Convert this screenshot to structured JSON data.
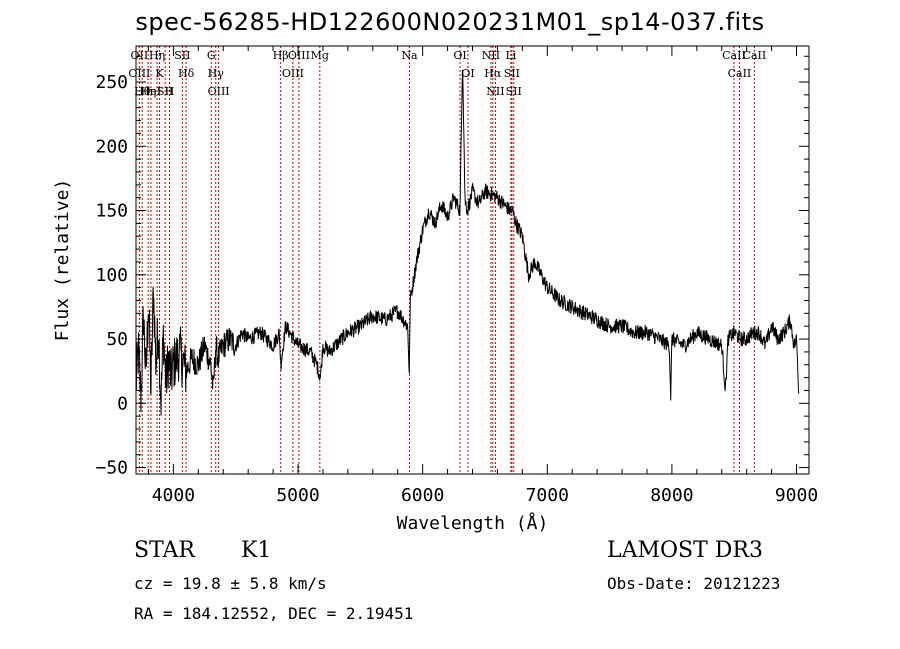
{
  "chart_data": {
    "type": "line",
    "title": "spec-56285-HD122600N020231M01_sp14-037.fits",
    "xlabel": "Wavelength (Å)",
    "ylabel": "Flux (relative)",
    "xlim": [
      3700,
      9100
    ],
    "ylim": [
      -55,
      278
    ],
    "xticks": [
      4000,
      5000,
      6000,
      7000,
      8000,
      9000
    ],
    "yticks": [
      -50,
      0,
      50,
      100,
      150,
      200,
      250
    ],
    "xtick_labels": [
      "4000",
      "5000",
      "6000",
      "7000",
      "8000",
      "9000"
    ],
    "ytick_labels": [
      "−50",
      "0",
      "50",
      "100",
      "150",
      "200",
      "250"
    ],
    "series": [
      {
        "x": [
          3700,
          3720,
          3740,
          3760,
          3780,
          3800,
          3820,
          3840,
          3860,
          3880,
          3900,
          3920,
          3940,
          3960,
          3980,
          4000,
          4050,
          4100,
          4150,
          4200,
          4250,
          4300,
          4320,
          4340,
          4360,
          4400,
          4450,
          4500,
          4550,
          4600,
          4700,
          4800,
          4850,
          4862,
          4900,
          5000,
          5100,
          5150,
          5180,
          5200,
          5250,
          5300,
          5400,
          5500,
          5600,
          5700,
          5800,
          5880,
          5893,
          5900,
          5950,
          6000,
          6050,
          6100,
          6150,
          6200,
          6250,
          6300,
          6320,
          6340,
          6360,
          6400,
          6450,
          6500,
          6563,
          6600,
          6650,
          6700,
          6720,
          6750,
          6800,
          6850,
          6900,
          6950,
          7000,
          7100,
          7200,
          7300,
          7400,
          7500,
          7600,
          7700,
          7800,
          7900,
          7980,
          7990,
          8000,
          8100,
          8200,
          8300,
          8400,
          8430,
          8450,
          8500,
          8550,
          8600,
          8650,
          8700,
          8750,
          8800,
          8850,
          8900,
          8950,
          8980,
          9000,
          9020
        ],
        "y": [
          15,
          40,
          5,
          70,
          20,
          80,
          10,
          90,
          30,
          60,
          0,
          55,
          15,
          35,
          20,
          30,
          40,
          25,
          35,
          30,
          45,
          30,
          10,
          45,
          35,
          45,
          50,
          45,
          55,
          50,
          55,
          45,
          55,
          30,
          60,
          45,
          40,
          30,
          20,
          45,
          40,
          45,
          55,
          60,
          68,
          65,
          72,
          60,
          22,
          80,
          110,
          135,
          150,
          140,
          155,
          145,
          160,
          150,
          270,
          158,
          150,
          165,
          155,
          165,
          162,
          160,
          155,
          150,
          150,
          140,
          130,
          100,
          110,
          100,
          90,
          80,
          75,
          70,
          65,
          60,
          60,
          55,
          55,
          50,
          45,
          5,
          50,
          45,
          55,
          50,
          45,
          10,
          50,
          55,
          50,
          50,
          55,
          55,
          45,
          60,
          50,
          55,
          65,
          45,
          50,
          5
        ]
      }
    ],
    "lines": [
      {
        "x": 3727,
        "labels": [
          "OII",
          "OIII"
        ]
      },
      {
        "x": 3750,
        "labels": [
          "Hθ"
        ]
      },
      {
        "x": 3797,
        "labels": [
          "Hη"
        ]
      },
      {
        "x": 3820,
        "labels": [
          "HeI"
        ]
      },
      {
        "x": 3869,
        "labels": [
          "Hη"
        ]
      },
      {
        "x": 3889,
        "labels": [
          "K"
        ]
      },
      {
        "x": 3934,
        "labels": [
          "SII"
        ]
      },
      {
        "x": 3969,
        "labels": [
          "H"
        ]
      },
      {
        "x": 4072,
        "labels": [
          "SII"
        ]
      },
      {
        "x": 4102,
        "labels": [
          "Hδ"
        ]
      },
      {
        "x": 4304,
        "labels": [
          "G"
        ]
      },
      {
        "x": 4340,
        "labels": [
          "Hγ"
        ]
      },
      {
        "x": 4363,
        "labels": [
          "OIII"
        ]
      },
      {
        "x": 4861,
        "labels": [
          "Hβ"
        ]
      },
      {
        "x": 4959,
        "labels": [
          "OIII"
        ]
      },
      {
        "x": 5007,
        "labels": [
          "OIII"
        ]
      },
      {
        "x": 5175,
        "labels": [
          "Mg"
        ]
      },
      {
        "x": 5894,
        "labels": [
          "Na"
        ]
      },
      {
        "x": 6300,
        "labels": [
          "OI"
        ]
      },
      {
        "x": 6364,
        "labels": [
          "OI"
        ]
      },
      {
        "x": 6548,
        "labels": [
          "NII"
        ]
      },
      {
        "x": 6563,
        "labels": [
          "Hα"
        ]
      },
      {
        "x": 6584,
        "labels": [
          "NII"
        ]
      },
      {
        "x": 6708,
        "labels": [
          "Li"
        ]
      },
      {
        "x": 6716,
        "labels": [
          "SII"
        ]
      },
      {
        "x": 6731,
        "labels": [
          "SII"
        ]
      },
      {
        "x": 8498,
        "labels": [
          "CaII"
        ]
      },
      {
        "x": 8542,
        "labels": [
          "CaII"
        ]
      },
      {
        "x": 8662,
        "labels": [
          "CaII"
        ]
      }
    ],
    "line_color": "#c00000",
    "grid": false,
    "legend": "none"
  },
  "info": {
    "class": "STAR",
    "subclass": "K1",
    "survey": "LAMOST DR3",
    "cz": "cz = 19.8 ± 5.8 km/s",
    "obsdate": "Obs-Date: 20121223",
    "radec": "RA = 184.12552, DEC =   2.19451"
  }
}
